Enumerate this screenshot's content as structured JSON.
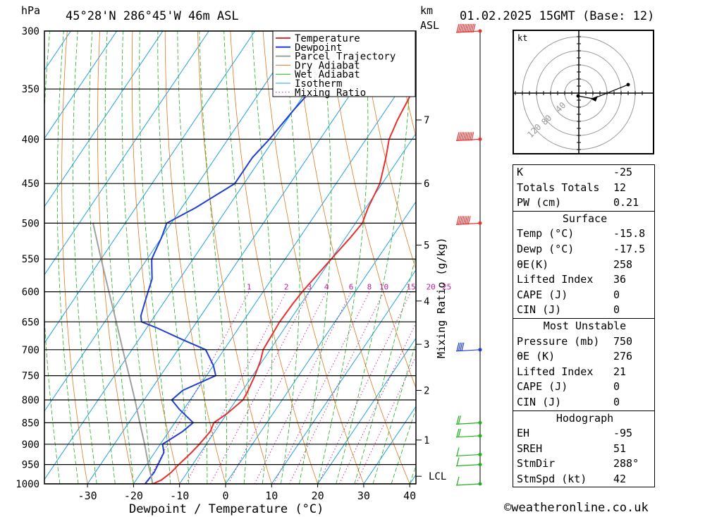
{
  "header": {
    "hpa_label": "hPa",
    "location": "45°28'N  286°45'W  46m  ASL",
    "km_label": "km",
    "asl_label": "ASL",
    "datetime": "01.02.2025  15GMT  (Base: 12)"
  },
  "chart_data": {
    "type": "line",
    "title": "45°28'N  286°45'W  46m  ASL",
    "xlabel": "Dewpoint / Temperature (°C)",
    "ylabel": "hPa",
    "xlim": [
      -40,
      40
    ],
    "ylim": [
      1000,
      300
    ],
    "x_ticks": [
      "-30",
      "-20",
      "-10",
      "0",
      "10",
      "20",
      "30",
      "40"
    ],
    "pressure_levels": [
      "300",
      "350",
      "400",
      "450",
      "500",
      "550",
      "600",
      "650",
      "700",
      "750",
      "800",
      "850",
      "900",
      "950",
      "1000"
    ],
    "km_ticks": [
      {
        "label": "7",
        "p": 380
      },
      {
        "label": "6",
        "p": 450
      },
      {
        "label": "5",
        "p": 530
      },
      {
        "label": "4",
        "p": 615
      },
      {
        "label": "3",
        "p": 690
      },
      {
        "label": "2",
        "p": 780
      },
      {
        "label": "1",
        "p": 890
      },
      {
        "label": "LCL",
        "p": 980
      }
    ],
    "mixing_ratio_axis_label": "Mixing Ratio (g/kg)",
    "mixing_ratio_labels": [
      "1",
      "2",
      "3",
      "4",
      "6",
      "8",
      "10",
      "15",
      "20",
      "25"
    ],
    "legend": [
      "Temperature",
      "Dewpoint",
      "Parcel Trajectory",
      "Dry Adiabat",
      "Wet Adiabat",
      "Isotherm",
      "Mixing Ratio"
    ],
    "legend_position": "top-right",
    "colors": {
      "temperature": "#e83030",
      "dewpoint": "#2040d0",
      "parcel": "#a0a0a0",
      "dry_adiabat": "#e07820",
      "wet_adiabat": "#20b020",
      "isotherm": "#20a0e0",
      "mixing_ratio": "#c020a0"
    },
    "series": [
      {
        "name": "Temperature",
        "points": [
          [
            1000,
            -15.8
          ],
          [
            990,
            -14.5
          ],
          [
            970,
            -13.5
          ],
          [
            950,
            -13
          ],
          [
            920,
            -12
          ],
          [
            900,
            -11.5
          ],
          [
            870,
            -11
          ],
          [
            850,
            -11.5
          ],
          [
            830,
            -10
          ],
          [
            800,
            -8.5
          ],
          [
            780,
            -8.8
          ],
          [
            750,
            -9.5
          ],
          [
            720,
            -10.5
          ],
          [
            700,
            -11.5
          ],
          [
            670,
            -11.8
          ],
          [
            650,
            -12
          ],
          [
            620,
            -11.8
          ],
          [
            600,
            -11.5
          ],
          [
            550,
            -10
          ],
          [
            520,
            -9
          ],
          [
            500,
            -8.5
          ],
          [
            480,
            -9.5
          ],
          [
            450,
            -10.5
          ],
          [
            420,
            -13
          ],
          [
            400,
            -15
          ],
          [
            380,
            -16
          ],
          [
            350,
            -17
          ],
          [
            320,
            -18.5
          ],
          [
            300,
            -20
          ]
        ]
      },
      {
        "name": "Dewpoint",
        "points": [
          [
            1000,
            -17.5
          ],
          [
            970,
            -17.2
          ],
          [
            950,
            -17.5
          ],
          [
            920,
            -18
          ],
          [
            900,
            -19.5
          ],
          [
            870,
            -17
          ],
          [
            850,
            -16
          ],
          [
            820,
            -21
          ],
          [
            800,
            -24
          ],
          [
            780,
            -23
          ],
          [
            750,
            -18
          ],
          [
            730,
            -20
          ],
          [
            700,
            -24
          ],
          [
            680,
            -31
          ],
          [
            660,
            -38
          ],
          [
            650,
            -42
          ],
          [
            640,
            -43
          ],
          [
            620,
            -44
          ],
          [
            600,
            -45
          ],
          [
            580,
            -46
          ],
          [
            560,
            -48
          ],
          [
            550,
            -49
          ],
          [
            520,
            -50
          ],
          [
            500,
            -51
          ],
          [
            480,
            -47
          ],
          [
            450,
            -42
          ],
          [
            420,
            -42
          ],
          [
            400,
            -41
          ],
          [
            370,
            -40
          ],
          [
            350,
            -39
          ],
          [
            320,
            -39
          ],
          [
            300,
            -39
          ]
        ]
      },
      {
        "name": "Parcel Trajectory",
        "points": [
          [
            1000,
            -15.8
          ],
          [
            980,
            -17.3
          ],
          [
            950,
            -19.6
          ],
          [
            900,
            -23.4
          ],
          [
            850,
            -27.6
          ],
          [
            800,
            -32
          ],
          [
            750,
            -36.8
          ],
          [
            700,
            -42
          ],
          [
            650,
            -47.5
          ],
          [
            600,
            -53.5
          ],
          [
            550,
            -60
          ],
          [
            500,
            -67
          ]
        ]
      }
    ],
    "wind_barbs": [
      {
        "p": 300,
        "dir": 280,
        "kt": 110
      },
      {
        "p": 400,
        "dir": 280,
        "kt": 100
      },
      {
        "p": 500,
        "dir": 280,
        "kt": 80
      },
      {
        "p": 700,
        "dir": 290,
        "kt": 40
      },
      {
        "p": 850,
        "dir": 300,
        "kt": 20
      },
      {
        "p": 880,
        "dir": 310,
        "kt": 15
      },
      {
        "p": 925,
        "dir": 320,
        "kt": 10
      },
      {
        "p": 950,
        "dir": 330,
        "kt": 10
      },
      {
        "p": 1000,
        "dir": 340,
        "kt": 5
      }
    ]
  },
  "hodograph": {
    "unit": "kt",
    "ring_labels": [
      "40",
      "80",
      "120"
    ]
  },
  "indices": [
    {
      "label": "K",
      "value": "-25"
    },
    {
      "label": "Totals Totals",
      "value": "12"
    },
    {
      "label": "PW (cm)",
      "value": "0.21"
    }
  ],
  "surface": {
    "title": "Surface",
    "rows": [
      {
        "label": "Temp (°C)",
        "value": "-15.8"
      },
      {
        "label": "Dewp (°C)",
        "value": "-17.5"
      },
      {
        "label": "θE(K)",
        "value": "258"
      },
      {
        "label": "Lifted Index",
        "value": "36"
      },
      {
        "label": "CAPE (J)",
        "value": "0"
      },
      {
        "label": "CIN (J)",
        "value": "0"
      }
    ]
  },
  "most_unstable": {
    "title": "Most Unstable",
    "rows": [
      {
        "label": "Pressure (mb)",
        "value": "750"
      },
      {
        "label": "θE (K)",
        "value": "276"
      },
      {
        "label": "Lifted Index",
        "value": "21"
      },
      {
        "label": "CAPE (J)",
        "value": "0"
      },
      {
        "label": "CIN (J)",
        "value": "0"
      }
    ]
  },
  "hodograph_stats": {
    "title": "Hodograph",
    "rows": [
      {
        "label": "EH",
        "value": "-95"
      },
      {
        "label": "SREH",
        "value": "51"
      },
      {
        "label": "StmDir",
        "value": "288°"
      },
      {
        "label": "StmSpd (kt)",
        "value": "42"
      }
    ]
  },
  "footer": "©weatheronline.co.uk"
}
